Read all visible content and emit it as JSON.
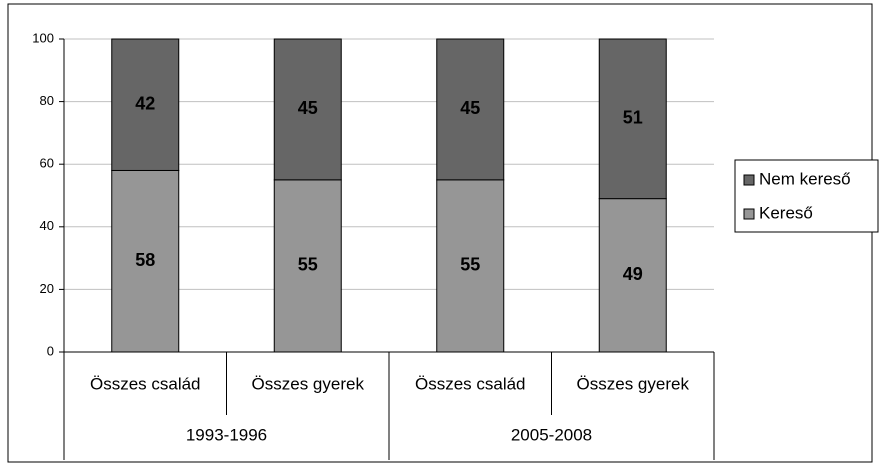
{
  "chart_data": {
    "type": "stacked_bar",
    "categories": [
      "Összes család",
      "Összes gyerek",
      "Összes család",
      "Összes gyerek"
    ],
    "group_labels": [
      "1993-1996",
      "2005-2008"
    ],
    "series": [
      {
        "name": "Kereső",
        "color": "#969696",
        "values": [
          58,
          55,
          55,
          49
        ]
      },
      {
        "name": "Nem kereső",
        "color": "#666666",
        "values": [
          42,
          45,
          45,
          51
        ]
      }
    ],
    "ylim": [
      0,
      100
    ],
    "yticks": [
      0,
      20,
      40,
      60,
      80,
      100
    ],
    "grid": true,
    "legend": "right"
  }
}
